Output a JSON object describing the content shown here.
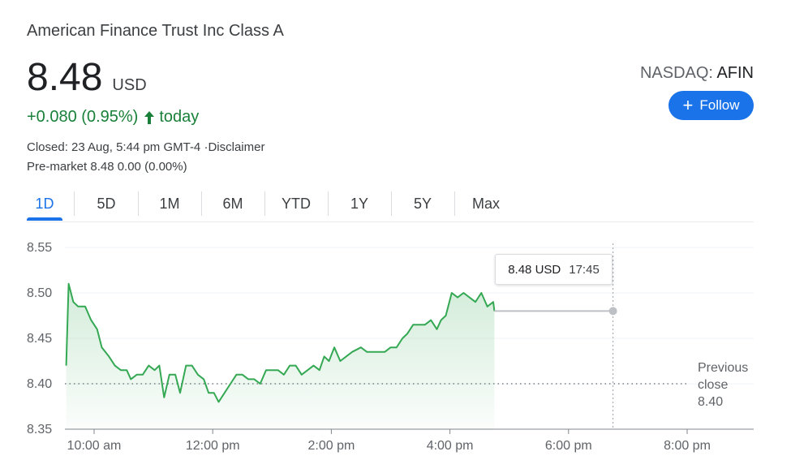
{
  "header": {
    "company": "American Finance Trust Inc Class A",
    "price": "8.48",
    "currency": "USD",
    "change": "+0.080 (0.95%)",
    "change_suffix": "today",
    "closed_info": "Closed: 23 Aug, 5:44 pm GMT-4 ·Disclaimer",
    "premarket_info": "Pre-market 8.48 0.00 (0.00%)",
    "exchange": "NASDAQ:",
    "ticker": "AFIN",
    "follow_label": "Follow",
    "accent_color": "#1a73e8",
    "positive_color": "#188038"
  },
  "tabs": [
    "1D",
    "5D",
    "1M",
    "6M",
    "YTD",
    "1Y",
    "5Y",
    "Max"
  ],
  "active_tab": "1D",
  "tooltip": {
    "value": "8.48 USD",
    "time": "17:45"
  },
  "previous_close": {
    "line1": "Previous",
    "line2": "close",
    "value": "8.40"
  },
  "chart_data": {
    "type": "area",
    "title": "",
    "xlabel": "",
    "ylabel": "",
    "ylim": [
      8.35,
      8.55
    ],
    "yticks": [
      "8.55",
      "8.50",
      "8.45",
      "8.40",
      "8.35"
    ],
    "xticks": [
      "10:00 am",
      "12:00 pm",
      "2:00 pm",
      "4:00 pm",
      "6:00 pm",
      "8:00 pm"
    ],
    "x_range_hours": [
      9.5,
      20.5
    ],
    "previous_close": 8.4,
    "line_color": "#34a853",
    "series": [
      {
        "points": [
          [
            9.53,
            8.42
          ],
          [
            9.57,
            8.51
          ],
          [
            9.65,
            8.49
          ],
          [
            9.73,
            8.485
          ],
          [
            9.85,
            8.485
          ],
          [
            9.95,
            8.47
          ],
          [
            10.05,
            8.46
          ],
          [
            10.13,
            8.44
          ],
          [
            10.25,
            8.43
          ],
          [
            10.35,
            8.42
          ],
          [
            10.45,
            8.415
          ],
          [
            10.55,
            8.415
          ],
          [
            10.62,
            8.405
          ],
          [
            10.72,
            8.41
          ],
          [
            10.82,
            8.41
          ],
          [
            10.92,
            8.42
          ],
          [
            11.02,
            8.415
          ],
          [
            11.1,
            8.42
          ],
          [
            11.18,
            8.385
          ],
          [
            11.27,
            8.41
          ],
          [
            11.37,
            8.41
          ],
          [
            11.45,
            8.39
          ],
          [
            11.55,
            8.42
          ],
          [
            11.65,
            8.42
          ],
          [
            11.75,
            8.41
          ],
          [
            11.85,
            8.405
          ],
          [
            11.93,
            8.39
          ],
          [
            12.02,
            8.39
          ],
          [
            12.1,
            8.38
          ],
          [
            12.2,
            8.39
          ],
          [
            12.3,
            8.4
          ],
          [
            12.4,
            8.41
          ],
          [
            12.5,
            8.41
          ],
          [
            12.6,
            8.405
          ],
          [
            12.7,
            8.405
          ],
          [
            12.8,
            8.4
          ],
          [
            12.9,
            8.415
          ],
          [
            13.0,
            8.415
          ],
          [
            13.1,
            8.415
          ],
          [
            13.2,
            8.41
          ],
          [
            13.3,
            8.42
          ],
          [
            13.4,
            8.42
          ],
          [
            13.5,
            8.41
          ],
          [
            13.6,
            8.415
          ],
          [
            13.7,
            8.42
          ],
          [
            13.8,
            8.415
          ],
          [
            13.88,
            8.43
          ],
          [
            13.96,
            8.425
          ],
          [
            14.05,
            8.44
          ],
          [
            14.15,
            8.425
          ],
          [
            14.25,
            8.43
          ],
          [
            14.35,
            8.435
          ],
          [
            14.5,
            8.44
          ],
          [
            14.6,
            8.435
          ],
          [
            14.75,
            8.435
          ],
          [
            14.9,
            8.435
          ],
          [
            15.0,
            8.44
          ],
          [
            15.1,
            8.44
          ],
          [
            15.2,
            8.45
          ],
          [
            15.28,
            8.455
          ],
          [
            15.38,
            8.465
          ],
          [
            15.48,
            8.465
          ],
          [
            15.58,
            8.465
          ],
          [
            15.68,
            8.47
          ],
          [
            15.78,
            8.46
          ],
          [
            15.85,
            8.47
          ],
          [
            15.93,
            8.475
          ],
          [
            16.03,
            8.5
          ],
          [
            16.13,
            8.495
          ],
          [
            16.23,
            8.5
          ],
          [
            16.33,
            8.495
          ],
          [
            16.43,
            8.49
          ],
          [
            16.53,
            8.5
          ],
          [
            16.63,
            8.485
          ],
          [
            16.73,
            8.49
          ],
          [
            16.75,
            8.48
          ],
          [
            18.75,
            8.48
          ]
        ]
      }
    ]
  }
}
